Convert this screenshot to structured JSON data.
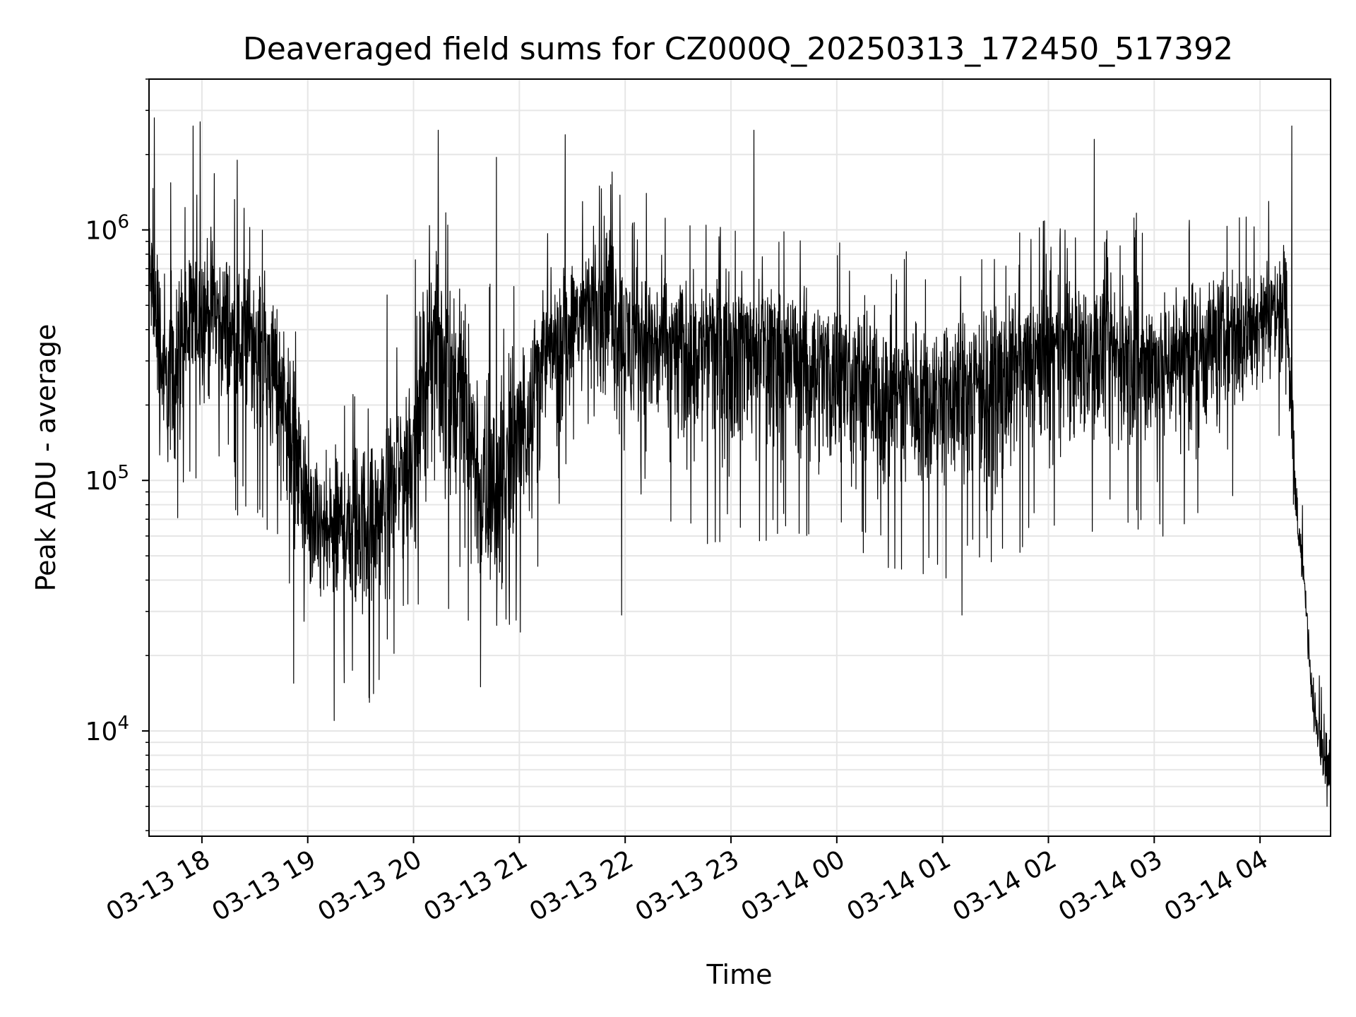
{
  "chart_data": {
    "type": "line",
    "title": "Deaveraged field sums for CZ000Q_20250313_172450_517392",
    "xlabel": "Time",
    "ylabel": "Peak ADU - average",
    "yscale": "log",
    "ylim": [
      3800,
      4000000
    ],
    "grid": true,
    "line_color": "#000000",
    "grid_color": "#e6e6e6",
    "x_ticks": [
      "03-13 18",
      "03-13 19",
      "03-13 20",
      "03-13 21",
      "03-13 22",
      "03-13 23",
      "03-14 00",
      "03-14 01",
      "03-14 02",
      "03-14 03",
      "03-14 04"
    ],
    "y_ticks": [
      {
        "base": "10",
        "exp": "4",
        "value": 10000
      },
      {
        "base": "10",
        "exp": "5",
        "value": 100000
      },
      {
        "base": "10",
        "exp": "6",
        "value": 1000000
      }
    ],
    "x_range": [
      "2025-03-13 17:30",
      "2025-03-14 04:40"
    ],
    "series": [
      {
        "x": [
          "2025-03-13 17:30",
          "2025-03-13 17:40",
          "2025-03-13 17:50",
          "2025-03-13 18:00",
          "2025-03-13 18:10",
          "2025-03-13 18:20",
          "2025-03-13 18:30",
          "2025-03-13 18:40",
          "2025-03-13 18:50",
          "2025-03-13 19:00",
          "2025-03-13 19:10",
          "2025-03-13 19:20",
          "2025-03-13 19:30",
          "2025-03-13 19:40",
          "2025-03-13 19:50",
          "2025-03-13 20:00",
          "2025-03-13 20:10",
          "2025-03-13 20:20",
          "2025-03-13 20:30",
          "2025-03-13 20:40",
          "2025-03-13 20:50",
          "2025-03-13 21:00",
          "2025-03-13 21:10",
          "2025-03-13 21:20",
          "2025-03-13 21:30",
          "2025-03-13 21:40",
          "2025-03-13 21:50",
          "2025-03-13 22:00",
          "2025-03-13 22:30",
          "2025-03-13 23:00",
          "2025-03-13 23:30",
          "2025-03-14 00:00",
          "2025-03-14 00:30",
          "2025-03-14 01:00",
          "2025-03-14 01:30",
          "2025-03-14 02:00",
          "2025-03-14 02:30",
          "2025-03-14 03:00",
          "2025-03-14 03:30",
          "2025-03-14 03:50",
          "2025-03-14 04:00",
          "2025-03-14 04:10",
          "2025-03-14 04:15",
          "2025-03-14 04:20",
          "2025-03-14 04:25",
          "2025-03-14 04:30",
          "2025-03-14 04:35",
          "2025-03-14 04:40"
        ],
        "y": [
          700000,
          200000,
          400000,
          500000,
          450000,
          350000,
          400000,
          300000,
          200000,
          70000,
          60000,
          70000,
          70000,
          80000,
          100000,
          140000,
          400000,
          300000,
          200000,
          70000,
          90000,
          150000,
          300000,
          350000,
          450000,
          500000,
          550000,
          400000,
          350000,
          380000,
          350000,
          280000,
          230000,
          230000,
          250000,
          330000,
          320000,
          300000,
          380000,
          400000,
          450000,
          500000,
          600000,
          80000,
          40000,
          12000,
          9000,
          6000
        ],
        "envelope_high": [
          1500000,
          1100000,
          1100000,
          1200000,
          1200000,
          1000000,
          900000,
          700000,
          500000,
          160000,
          150000,
          180000,
          200000,
          160000,
          300000,
          500000,
          1000000,
          900000,
          800000,
          500000,
          600000,
          500000,
          600000,
          800000,
          900000,
          1200000,
          1500000,
          900000,
          800000,
          800000,
          700000,
          700000,
          600000,
          600000,
          650000,
          800000,
          900000,
          800000,
          800000,
          900000,
          900000,
          1000000,
          1000000,
          200000,
          50000,
          18000,
          14000,
          11000
        ],
        "envelope_low": [
          300000,
          90000,
          100000,
          150000,
          140000,
          100000,
          110000,
          80000,
          50000,
          25000,
          20000,
          18000,
          18000,
          20000,
          30000,
          40000,
          60000,
          40000,
          30000,
          25000,
          28000,
          30000,
          60000,
          100000,
          150000,
          120000,
          150000,
          80000,
          70000,
          80000,
          80000,
          70000,
          60000,
          55000,
          65000,
          80000,
          90000,
          80000,
          100000,
          120000,
          150000,
          200000,
          250000,
          60000,
          30000,
          10000,
          6000,
          5000
        ],
        "peaks": [
          {
            "x": "2025-03-13 17:33",
            "y": 2800000
          },
          {
            "x": "2025-03-13 17:55",
            "y": 2600000
          },
          {
            "x": "2025-03-13 17:59",
            "y": 2700000
          },
          {
            "x": "2025-03-13 18:20",
            "y": 1900000
          },
          {
            "x": "2025-03-13 19:45",
            "y": 550000
          },
          {
            "x": "2025-03-13 20:14",
            "y": 2500000
          },
          {
            "x": "2025-03-13 20:47",
            "y": 1950000
          },
          {
            "x": "2025-03-13 21:26",
            "y": 2400000
          },
          {
            "x": "2025-03-13 22:12",
            "y": 1400000
          },
          {
            "x": "2025-03-13 23:13",
            "y": 2500000
          },
          {
            "x": "2025-03-14 02:26",
            "y": 2300000
          },
          {
            "x": "2025-03-14 04:18",
            "y": 2600000
          }
        ],
        "troughs": [
          {
            "x": "2025-03-13 19:15",
            "y": 11000
          },
          {
            "x": "2025-03-13 19:35",
            "y": 13000
          },
          {
            "x": "2025-03-13 18:52",
            "y": 15500
          },
          {
            "x": "2025-03-13 20:38",
            "y": 15000
          },
          {
            "x": "2025-03-13 21:58",
            "y": 29000
          },
          {
            "x": "2025-03-14 01:11",
            "y": 29000
          },
          {
            "x": "2025-03-14 04:38",
            "y": 5000
          }
        ]
      }
    ]
  }
}
